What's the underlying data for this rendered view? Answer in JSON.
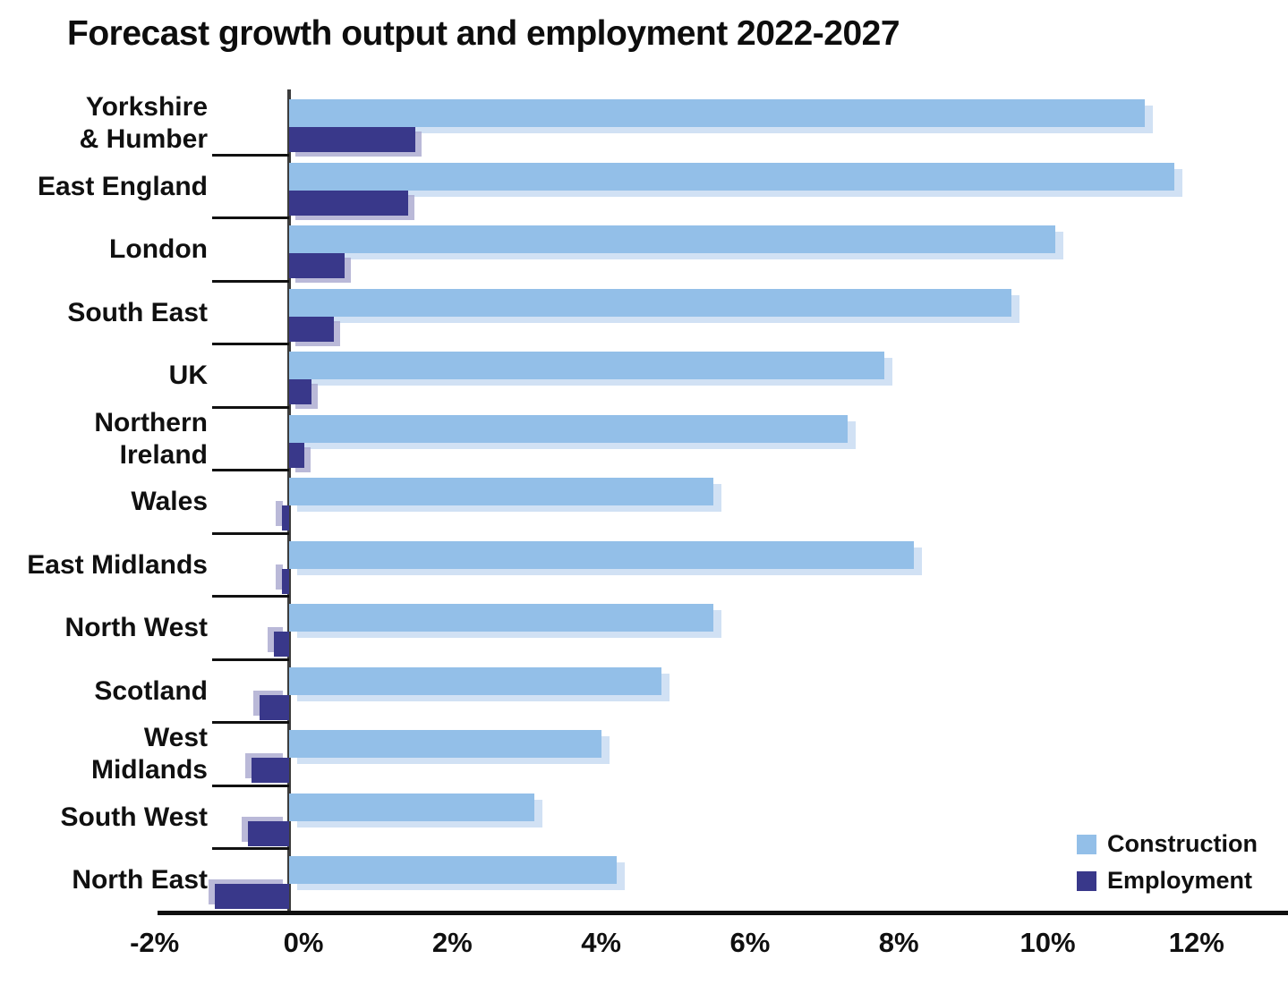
{
  "title": "Forecast growth output and employment 2022-2027",
  "legend": {
    "items": [
      {
        "label": "Construction",
        "color": "#93BFE8"
      },
      {
        "label": "Employment",
        "color": "#39388A"
      }
    ]
  },
  "colors": {
    "construction_bar": "#93BFE8",
    "employment_bar": "#39388A",
    "construction_shadow": "#C9DCF2",
    "employment_shadow": "#A9A8CE",
    "axis": "#101010"
  },
  "category_label_lines": [
    [
      "Yorkshire",
      "& Humber"
    ],
    [
      "East England"
    ],
    [
      "London"
    ],
    [
      "South East"
    ],
    [
      "UK"
    ],
    [
      "Northern",
      "Ireland"
    ],
    [
      "Wales"
    ],
    [
      "East Midlands"
    ],
    [
      "North West"
    ],
    [
      "Scotland"
    ],
    [
      "West",
      "Midlands"
    ],
    [
      "South West"
    ],
    [
      "North East"
    ]
  ],
  "chart_data": {
    "type": "bar",
    "orientation": "horizontal",
    "title": "Forecast growth output and employment 2022-2027",
    "categories": [
      "Yorkshire & Humber",
      "East England",
      "London",
      "South East",
      "UK",
      "Northern Ireland",
      "Wales",
      "East Midlands",
      "North West",
      "Scotland",
      "West Midlands",
      "South West",
      "North East"
    ],
    "series": [
      {
        "name": "Construction",
        "unit": "%",
        "values": [
          11.5,
          11.9,
          10.3,
          9.7,
          8.0,
          7.5,
          5.7,
          8.4,
          5.7,
          5.0,
          4.2,
          3.3,
          4.4
        ]
      },
      {
        "name": "Employment",
        "unit": "%",
        "values": [
          1.7,
          1.6,
          0.75,
          0.6,
          0.3,
          0.2,
          -0.1,
          -0.1,
          -0.2,
          -0.4,
          -0.5,
          -0.55,
          -1.0
        ]
      }
    ],
    "xlabel": "",
    "ylabel": "",
    "x_ticks": [
      "-2%",
      "0%",
      "2%",
      "4%",
      "6%",
      "8%",
      "10%",
      "12%"
    ],
    "x_tick_values": [
      -2,
      0,
      2,
      4,
      6,
      8,
      10,
      12
    ],
    "xlim": [
      -2,
      13.4
    ],
    "grid": false,
    "legend_position": "bottom-right"
  }
}
